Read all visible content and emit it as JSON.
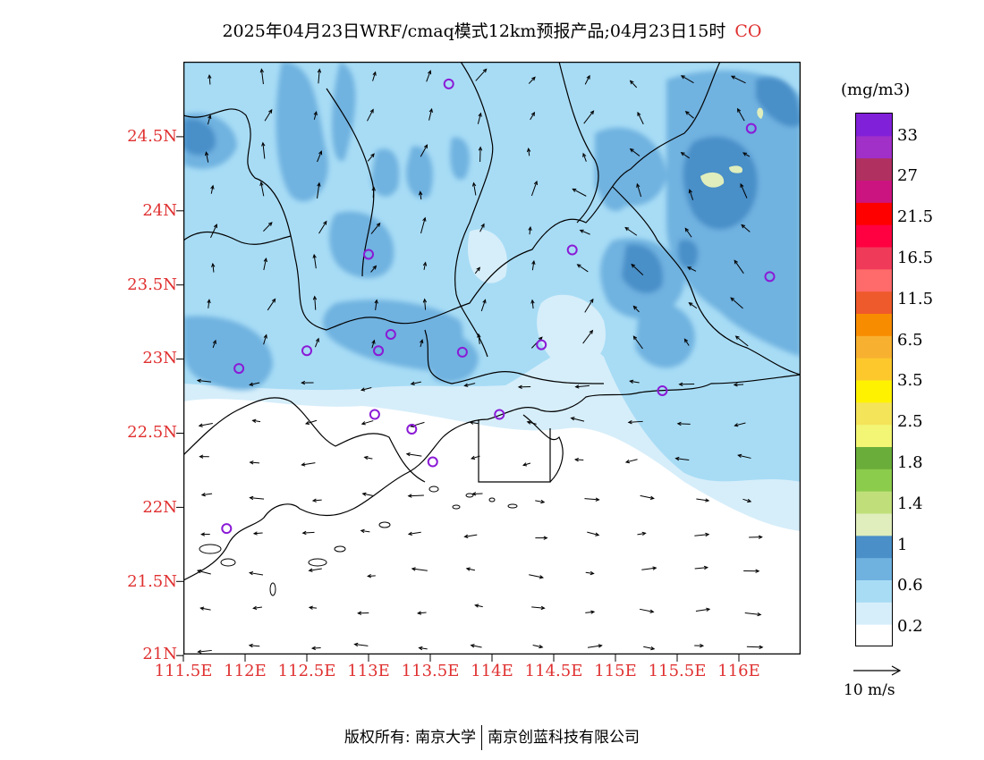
{
  "title": {
    "text": "2025年04月23日WRF/cmaq模式12km预报产品;04月23日15时",
    "species": "CO"
  },
  "axes": {
    "y_labels": [
      "24.5N",
      "24N",
      "23.5N",
      "23N",
      "22.5N",
      "22N",
      "21.5N",
      "21N"
    ],
    "x_labels": [
      "111.5E",
      "112E",
      "112.5E",
      "113E",
      "113.5E",
      "114E",
      "114.5E",
      "115E",
      "115.5E",
      "116E"
    ],
    "lon_range": [
      111.5,
      116.5
    ],
    "lat_range": [
      21,
      25
    ]
  },
  "colorbar": {
    "units": "(mg/m3)",
    "labels": [
      "33",
      "27",
      "21.5",
      "16.5",
      "11.5",
      "6.5",
      "3.5",
      "2.5",
      "1.8",
      "1.4",
      "1",
      "0.6",
      "0.2"
    ],
    "colors": [
      "#ffffff",
      "#d6eefa",
      "#a8dcf5",
      "#6fb2e0",
      "#4a8fc8",
      "#dfeebc",
      "#c0df7a",
      "#8ccc4c",
      "#6aad3a",
      "#f2f674",
      "#f4e45a",
      "#fff200",
      "#fdc82c",
      "#f8b030",
      "#f88c00",
      "#ef5a2c",
      "#ff6a6a",
      "#f03a5a",
      "#ff0040",
      "#ff0000",
      "#cc1480",
      "#b03060",
      "#a030c8",
      "#8020d8"
    ]
  },
  "vector_legend": {
    "label": "10  m/s"
  },
  "copyright": {
    "left": "版权所有: 南京大学",
    "right": "南京创蓝科技有限公司"
  },
  "stations": [
    {
      "lon": 113.65,
      "lat": 24.85
    },
    {
      "lon": 116.1,
      "lat": 24.55
    },
    {
      "lon": 113.0,
      "lat": 23.7
    },
    {
      "lon": 114.65,
      "lat": 23.73
    },
    {
      "lon": 116.25,
      "lat": 23.55
    },
    {
      "lon": 113.18,
      "lat": 23.16
    },
    {
      "lon": 112.5,
      "lat": 23.05
    },
    {
      "lon": 113.08,
      "lat": 23.05
    },
    {
      "lon": 113.76,
      "lat": 23.04
    },
    {
      "lon": 114.4,
      "lat": 23.09
    },
    {
      "lon": 111.95,
      "lat": 22.93
    },
    {
      "lon": 115.38,
      "lat": 22.78
    },
    {
      "lon": 113.05,
      "lat": 22.62
    },
    {
      "lon": 113.35,
      "lat": 22.52
    },
    {
      "lon": 114.06,
      "lat": 22.62
    },
    {
      "lon": 113.52,
      "lat": 22.3
    },
    {
      "lon": 111.85,
      "lat": 21.85
    }
  ]
}
